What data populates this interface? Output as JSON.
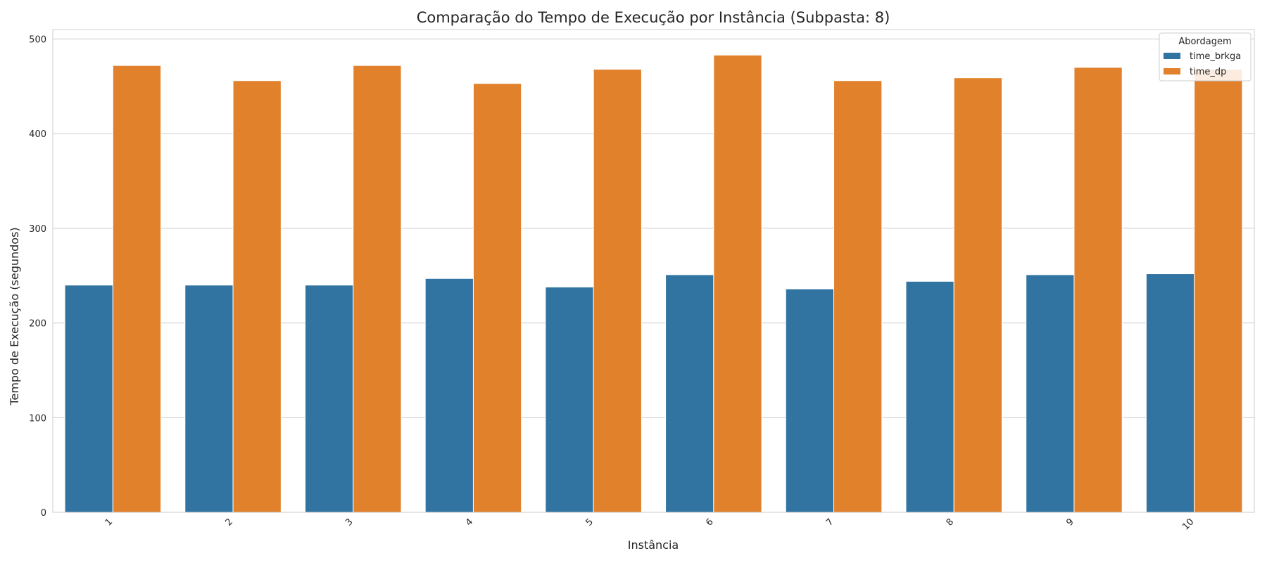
{
  "chart_data": {
    "type": "bar",
    "title": "Comparação do Tempo de Execução por Instância (Subpasta: 8)",
    "xlabel": "Instância",
    "ylabel": "Tempo de Execução (segundos)",
    "categories": [
      "1",
      "2",
      "3",
      "4",
      "5",
      "6",
      "7",
      "8",
      "9",
      "10"
    ],
    "series": [
      {
        "name": "time_brkga",
        "color": "#3274a1",
        "values": [
          240,
          240,
          240,
          247,
          238,
          251,
          236,
          244,
          251,
          252
        ]
      },
      {
        "name": "time_dp",
        "color": "#e1812c",
        "values": [
          472,
          456,
          472,
          453,
          468,
          483,
          456,
          459,
          470,
          468
        ]
      }
    ],
    "ylim": [
      0,
      510
    ],
    "yticks": [
      0,
      100,
      200,
      300,
      400,
      500
    ],
    "grid": true,
    "legend": {
      "title": "Abordagem",
      "position": "top-right"
    },
    "xtick_rotation": 45
  }
}
